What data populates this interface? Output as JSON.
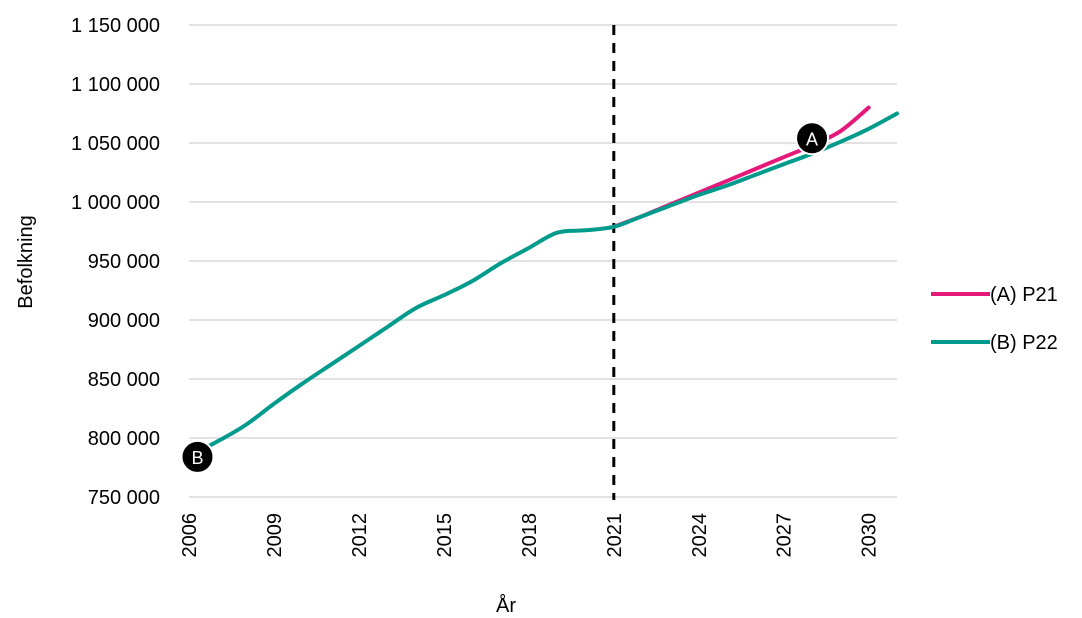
{
  "chart_data": {
    "type": "line",
    "xlabel": "År",
    "ylabel": "Befolkning",
    "xlim": [
      2006,
      2031
    ],
    "ylim": [
      750000,
      1150000
    ],
    "x_ticks": [
      2006,
      2009,
      2012,
      2015,
      2018,
      2021,
      2024,
      2027,
      2030
    ],
    "x_tick_labels": [
      "2006",
      "2009",
      "2012",
      "2015",
      "2018",
      "2021",
      "2024",
      "2027",
      "2030"
    ],
    "y_ticks": [
      750000,
      800000,
      850000,
      900000,
      950000,
      1000000,
      1050000,
      1100000,
      1150000
    ],
    "y_tick_labels": [
      "750 000",
      "800 000",
      "850 000",
      "900 000",
      "950 000",
      "1 000 000",
      "1 050 000",
      "1 100 000",
      "1 150 000"
    ],
    "grid": "horizontal",
    "legend": "right",
    "divider_x": 2021,
    "series": [
      {
        "name": "(A) P21",
        "color": "#E5197A",
        "x": [
          2021,
          2022,
          2023,
          2024,
          2025,
          2026,
          2027,
          2028,
          2029,
          2030
        ],
        "y": [
          979000,
          988000,
          998000,
          1008000,
          1018000,
          1028000,
          1038000,
          1048000,
          1060000,
          1080000
        ]
      },
      {
        "name": "(B) P22",
        "color": "#009B8D",
        "x": [
          2006,
          2007,
          2008,
          2009,
          2010,
          2011,
          2012,
          2013,
          2014,
          2015,
          2016,
          2017,
          2018,
          2019,
          2020,
          2021,
          2022,
          2023,
          2024,
          2025,
          2026,
          2027,
          2028,
          2029,
          2030,
          2031
        ],
        "y": [
          785000,
          797000,
          811000,
          829000,
          846000,
          862000,
          878000,
          894000,
          910000,
          921000,
          933000,
          948000,
          961000,
          974000,
          976000,
          979000,
          988000,
          997000,
          1006000,
          1014000,
          1023000,
          1032000,
          1041000,
          1051000,
          1062000,
          1075000
        ]
      }
    ],
    "markers": [
      {
        "label": "A",
        "x": 2028,
        "y": 1054000
      },
      {
        "label": "B",
        "x": 2006.3,
        "y": 784000
      }
    ]
  }
}
